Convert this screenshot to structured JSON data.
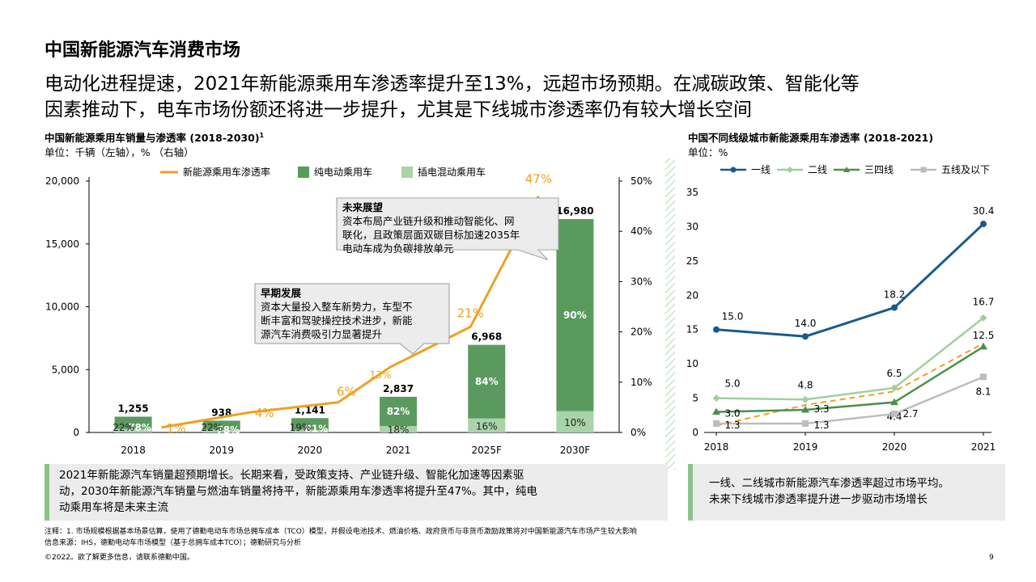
{
  "page_title": "中国新能源汽车消费市场",
  "headline": [
    "电动化进程提速，2021年新能源乘用车渗透率提升至13%，远超市场预期。在减碳政策、智能化等",
    "因素推动下，电车市场份额还将进一步提升，尤其是下线城市渗透率仍有较大增长空间"
  ],
  "left_chart": {
    "title": "中国新能源乘用车销量与渗透率 (2018-2030)",
    "title_sup": "1",
    "unit": "单位：千辆（左轴），% （右轴）",
    "callout_future": {
      "title": "未来展望",
      "lines": [
        "资本布局产业链升级和推动智能化、网",
        "联化，且政策层面双碳目标加速2035年",
        "电动车成为负碳排放单元"
      ]
    },
    "callout_early": {
      "title": "早期发展",
      "lines": [
        "资本大量投入整车新势力，车型不",
        "断丰富和驾驶操控技术进步，新能",
        "源汽车消费吸引力显著提升"
      ]
    },
    "note": [
      "2021年新能源汽车销量超预期增长。长期来看，受政策支持、产业链升级、智能化加速等因素驱",
      "动，2030年新能源汽车销量与燃油车销量将持平，新能源乘用车渗透率将提升至47%。其中，纯电",
      "动乘用车将是未来主流"
    ]
  },
  "right_chart": {
    "title": "中国不同线级城市新能源乘用车渗透率 (2018-2021)",
    "unit": "单位：%",
    "note": [
      "一线、二线城市新能源汽车渗透率超过市场平均。",
      "未来下线城市渗透率提升进一步驱动市场增长"
    ]
  },
  "chart_data": [
    {
      "type": "bar",
      "categories": [
        "2018",
        "2019",
        "2020",
        "2021",
        "2025F",
        "2030F"
      ],
      "totals": [
        "1,255",
        "938",
        "1,141",
        "2,837",
        "6,968",
        "16,980"
      ],
      "total_values": [
        1255,
        938,
        1141,
        2837,
        6968,
        16980
      ],
      "series": [
        {
          "name": "纯电动乘用车",
          "color": "#5a9a5e",
          "share_labels": [
            "78%",
            "78%",
            "81%",
            "82%",
            "84%",
            "90%"
          ],
          "shares": [
            0.78,
            0.78,
            0.81,
            0.82,
            0.84,
            0.9
          ]
        },
        {
          "name": "插电混动乘用车",
          "color": "#a9d3a9",
          "share_labels": [
            "22%",
            "22%",
            "19%",
            "18%",
            "16%",
            "10%"
          ],
          "shares": [
            0.22,
            0.22,
            0.19,
            0.18,
            0.16,
            0.1
          ]
        }
      ],
      "line_series": {
        "name": "新能源乘用车渗透率",
        "color": "#f0a020",
        "values": [
          1,
          4,
          6,
          13,
          21,
          47
        ],
        "labels": [
          "1%",
          "4%",
          "6%",
          "13%",
          "21%",
          "47%"
        ]
      },
      "ylim": [
        0,
        20000
      ],
      "y_ticks": [
        "0",
        "5,000",
        "10,000",
        "15,000",
        "20,000"
      ],
      "y2lim": [
        0,
        50
      ],
      "y2_ticks": [
        "0%",
        "10%",
        "20%",
        "30%",
        "40%",
        "50%"
      ],
      "legend": "top"
    },
    {
      "type": "line",
      "x": [
        "2018",
        "2019",
        "2020",
        "2021"
      ],
      "series": [
        {
          "name": "一线",
          "color": "#1a5a8c",
          "values": [
            15.0,
            14.0,
            18.2,
            30.4
          ],
          "labels": [
            "15.0",
            "14.0",
            "18.2",
            "30.4"
          ]
        },
        {
          "name": "二线",
          "color": "#9fd09f",
          "values": [
            5.0,
            4.8,
            6.5,
            16.7
          ],
          "labels": [
            "5.0",
            "4.8",
            "6.5",
            "16.7"
          ]
        },
        {
          "name": "三四线",
          "color": "#4a8f4f",
          "values": [
            3.0,
            3.3,
            4.4,
            12.5
          ],
          "labels": [
            "3.0",
            "3.3",
            "4.4",
            "12.5"
          ]
        },
        {
          "name": "五线及以下",
          "color": "#bdbdbd",
          "values": [
            1.3,
            1.3,
            2.7,
            8.1
          ],
          "labels": [
            "1.3",
            "1.3",
            "2.7",
            "8.1"
          ]
        }
      ],
      "average_line": {
        "color": "#f0a020",
        "values": [
          1,
          4,
          6,
          13
        ]
      },
      "ylim": [
        0,
        35
      ],
      "y_ticks": [
        "0",
        "5",
        "10",
        "15",
        "20",
        "25",
        "30",
        "35"
      ],
      "legend": "top"
    }
  ],
  "footnotes": [
    "注释：1. 市场规模根据基本场景估算，使用了德勤电动车市场总拥车成本（TCO）模型，并假设电池技术、燃油价格、政府货币与非货币激励政策将对中国新能源汽车市场产生较大影响",
    "信息来源：IHS，德勤电动车市场模型（基于总拥车成本TCO）；德勤研究与分析"
  ],
  "copyright": "©2022。欲了解更多信息，请联系德勤中国。",
  "page_number": "9"
}
